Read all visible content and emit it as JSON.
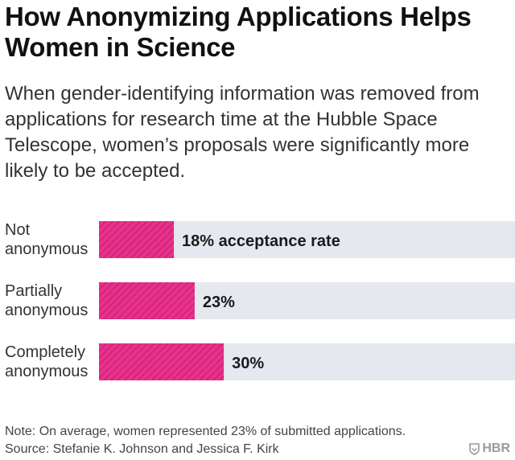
{
  "title": "How Anonymizing Applications Helps Women in Science",
  "subtitle": "When gender-identifying information was removed from applications for research time at the Hubble Space Telescope, women’s proposals were significantly more likely to be accepted.",
  "note": "Note: On average, women represented 23% of submitted applications.",
  "source": "Source: Stefanie K. Johnson and Jessica F. Kirk",
  "logo_text": "HBR",
  "colors": {
    "bar": "#e8318a",
    "track": "#e5e8ef",
    "hatch": "#b5176a"
  },
  "chart_data": {
    "type": "bar",
    "orientation": "horizontal",
    "categories": [
      [
        "Not",
        "anonymous"
      ],
      [
        "Partially",
        "anonymous"
      ],
      [
        "Completely",
        "anonymous"
      ]
    ],
    "values": [
      18,
      23,
      30
    ],
    "value_labels": [
      "18% acceptance rate",
      "23%",
      "30%"
    ],
    "xlim": [
      0,
      100
    ],
    "unit": "%",
    "grid": false,
    "legend": "none"
  }
}
